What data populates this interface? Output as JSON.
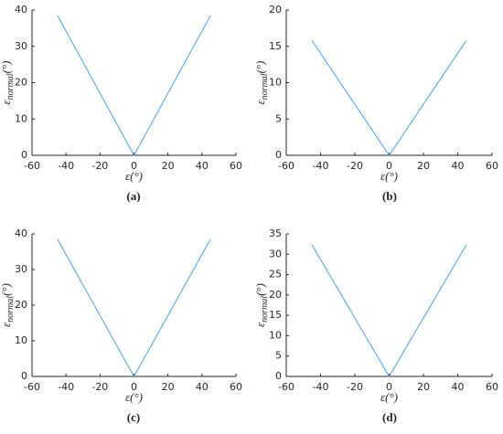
{
  "chart_data": [
    {
      "type": "line",
      "panel": "(a)",
      "xlabel": "ε(°)",
      "ylabel": {
        "symbol": "ε",
        "subscript": "normal",
        "unit": "(°)"
      },
      "x": [
        -45,
        0,
        45
      ],
      "series": [
        {
          "color": "#4d9de0",
          "values": [
            38.5,
            0,
            38.5
          ]
        }
      ],
      "xlim": [
        -60,
        60
      ],
      "xticks": [
        -60,
        -40,
        -20,
        0,
        20,
        40,
        60
      ],
      "ylim": [
        0,
        40
      ],
      "yticks": [
        0,
        10,
        20,
        30,
        40
      ]
    },
    {
      "type": "line",
      "panel": "(b)",
      "xlabel": "ε(°)",
      "ylabel": {
        "symbol": "ε",
        "subscript": "normal",
        "unit": "(°)"
      },
      "x": [
        -45,
        0,
        45
      ],
      "series": [
        {
          "color": "#4d9de0",
          "values": [
            15.8,
            0,
            15.8
          ]
        }
      ],
      "xlim": [
        -60,
        60
      ],
      "xticks": [
        -60,
        -40,
        -20,
        0,
        20,
        40,
        60
      ],
      "ylim": [
        0,
        20
      ],
      "yticks": [
        0,
        5,
        10,
        15,
        20
      ]
    },
    {
      "type": "line",
      "panel": "(c)",
      "xlabel": "ε(°)",
      "ylabel": {
        "symbol": "ε",
        "subscript": "normal",
        "unit": "(°)"
      },
      "x": [
        -45,
        0,
        45
      ],
      "series": [
        {
          "color": "#4d9de0",
          "values": [
            38.5,
            0,
            38.5
          ]
        }
      ],
      "xlim": [
        -60,
        60
      ],
      "xticks": [
        -60,
        -40,
        -20,
        0,
        20,
        40,
        60
      ],
      "ylim": [
        0,
        40
      ],
      "yticks": [
        0,
        10,
        20,
        30,
        40
      ]
    },
    {
      "type": "line",
      "panel": "(d)",
      "xlabel": "ε(°)",
      "ylabel": {
        "symbol": "ε",
        "subscript": "normal",
        "unit": "(°)"
      },
      "x": [
        -45,
        0,
        45
      ],
      "series": [
        {
          "color": "#4d9de0",
          "values": [
            32.3,
            0,
            32.3
          ]
        }
      ],
      "xlim": [
        -60,
        60
      ],
      "xticks": [
        -60,
        -40,
        -20,
        0,
        20,
        40,
        60
      ],
      "ylim": [
        0,
        35
      ],
      "yticks": [
        0,
        5,
        10,
        15,
        20,
        25,
        30,
        35
      ]
    }
  ]
}
